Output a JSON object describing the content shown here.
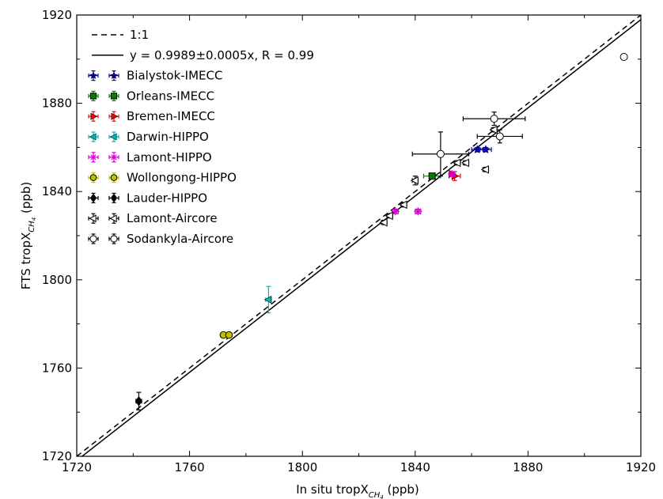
{
  "chart_data": {
    "type": "scatter",
    "xlabel": "In situ tropX",
    "xlabel_sub": "CH",
    "xlabel_subsub": "4",
    "xlabel_unit": " (ppb)",
    "ylabel": "FTS tropX",
    "ylabel_sub": "CH",
    "ylabel_subsub": "4",
    "ylabel_unit": " (ppb)",
    "xlim": [
      1720,
      1920
    ],
    "ylim": [
      1720,
      1920
    ],
    "xticks": [
      "1720",
      "1760",
      "1800",
      "1840",
      "1880",
      "1920"
    ],
    "yticks": [
      "1720",
      "1760",
      "1800",
      "1840",
      "1880",
      "1920"
    ],
    "grid": false,
    "legend_position": "top-left",
    "lines": [
      {
        "name": "1:1",
        "style": "dashed",
        "slope": 1.0,
        "color": "#000000"
      },
      {
        "name": "y = 0.9989±0.0005x, R = 0.99",
        "style": "solid",
        "slope": 0.9989,
        "color": "#000000"
      }
    ],
    "series": [
      {
        "name": "Bialystok-IMECC",
        "marker": "star",
        "color": "#0000c0",
        "points": [
          {
            "x": 1862,
            "y": 1859,
            "xerr": 2,
            "yerr": 1
          },
          {
            "x": 1865,
            "y": 1859,
            "xerr": 2,
            "yerr": 1
          }
        ]
      },
      {
        "name": "Orleans-IMECC",
        "marker": "square",
        "color": "#008000",
        "points": [
          {
            "x": 1846,
            "y": 1847,
            "xerr": 3,
            "yerr": 1
          }
        ]
      },
      {
        "name": "Bremen-IMECC",
        "marker": "triangle-right",
        "color": "#ff0000",
        "points": [
          {
            "x": 1854,
            "y": 1847,
            "xerr": 2,
            "yerr": 2
          },
          {
            "x": 1853,
            "y": 1848,
            "xerr": 1,
            "yerr": 1
          }
        ]
      },
      {
        "name": "Darwin-HIPPO",
        "marker": "triangle-left",
        "color": "#00b8b8",
        "points": [
          {
            "x": 1788,
            "y": 1791,
            "xerr": 1,
            "yerr": 6
          }
        ]
      },
      {
        "name": "Lamont-HIPPO",
        "marker": "asterisk",
        "color": "#d000d0",
        "points": [
          {
            "x": 1833,
            "y": 1831,
            "xerr": 1,
            "yerr": 1
          },
          {
            "x": 1841,
            "y": 1831,
            "xerr": 1,
            "yerr": 1
          },
          {
            "x": 1853,
            "y": 1848,
            "xerr": 1,
            "yerr": 1
          }
        ]
      },
      {
        "name": "Wollongong-HIPPO",
        "marker": "circle",
        "color": "#c0c000",
        "points": [
          {
            "x": 1772,
            "y": 1775,
            "xerr": 1,
            "yerr": 1
          },
          {
            "x": 1774,
            "y": 1775,
            "xerr": 1,
            "yerr": 1
          }
        ]
      },
      {
        "name": "Lauder-HIPPO",
        "marker": "diamond",
        "color": "#000000",
        "points": [
          {
            "x": 1742,
            "y": 1745,
            "xerr": 1,
            "yerr": 4
          }
        ]
      },
      {
        "name": "Lamont-Aircore",
        "marker": "triangle-left-open",
        "color": "#000000",
        "points": [
          {
            "x": 1829,
            "y": 1826,
            "xerr": 1,
            "yerr": 1
          },
          {
            "x": 1831,
            "y": 1829,
            "xerr": 1,
            "yerr": 1
          },
          {
            "x": 1836,
            "y": 1834,
            "xerr": 1,
            "yerr": 1
          },
          {
            "x": 1840,
            "y": 1845,
            "xerr": 1,
            "yerr": 2
          },
          {
            "x": 1855,
            "y": 1853,
            "xerr": 1,
            "yerr": 1
          },
          {
            "x": 1858,
            "y": 1853,
            "xerr": 1,
            "yerr": 1
          },
          {
            "x": 1865,
            "y": 1850,
            "xerr": 1,
            "yerr": 1
          },
          {
            "x": 1868,
            "y": 1868,
            "xerr": 1,
            "yerr": 1
          }
        ]
      },
      {
        "name": "Sodankyla-Aircore",
        "marker": "circle-open",
        "color": "#000000",
        "points": [
          {
            "x": 1849,
            "y": 1857,
            "xerr": 10,
            "yerr": 10
          },
          {
            "x": 1868,
            "y": 1873,
            "xerr": 11,
            "yerr": 3
          },
          {
            "x": 1870,
            "y": 1865,
            "xerr": 8,
            "yerr": 3
          },
          {
            "x": 1914,
            "y": 1901,
            "xerr": 0,
            "yerr": 0
          }
        ]
      }
    ]
  }
}
